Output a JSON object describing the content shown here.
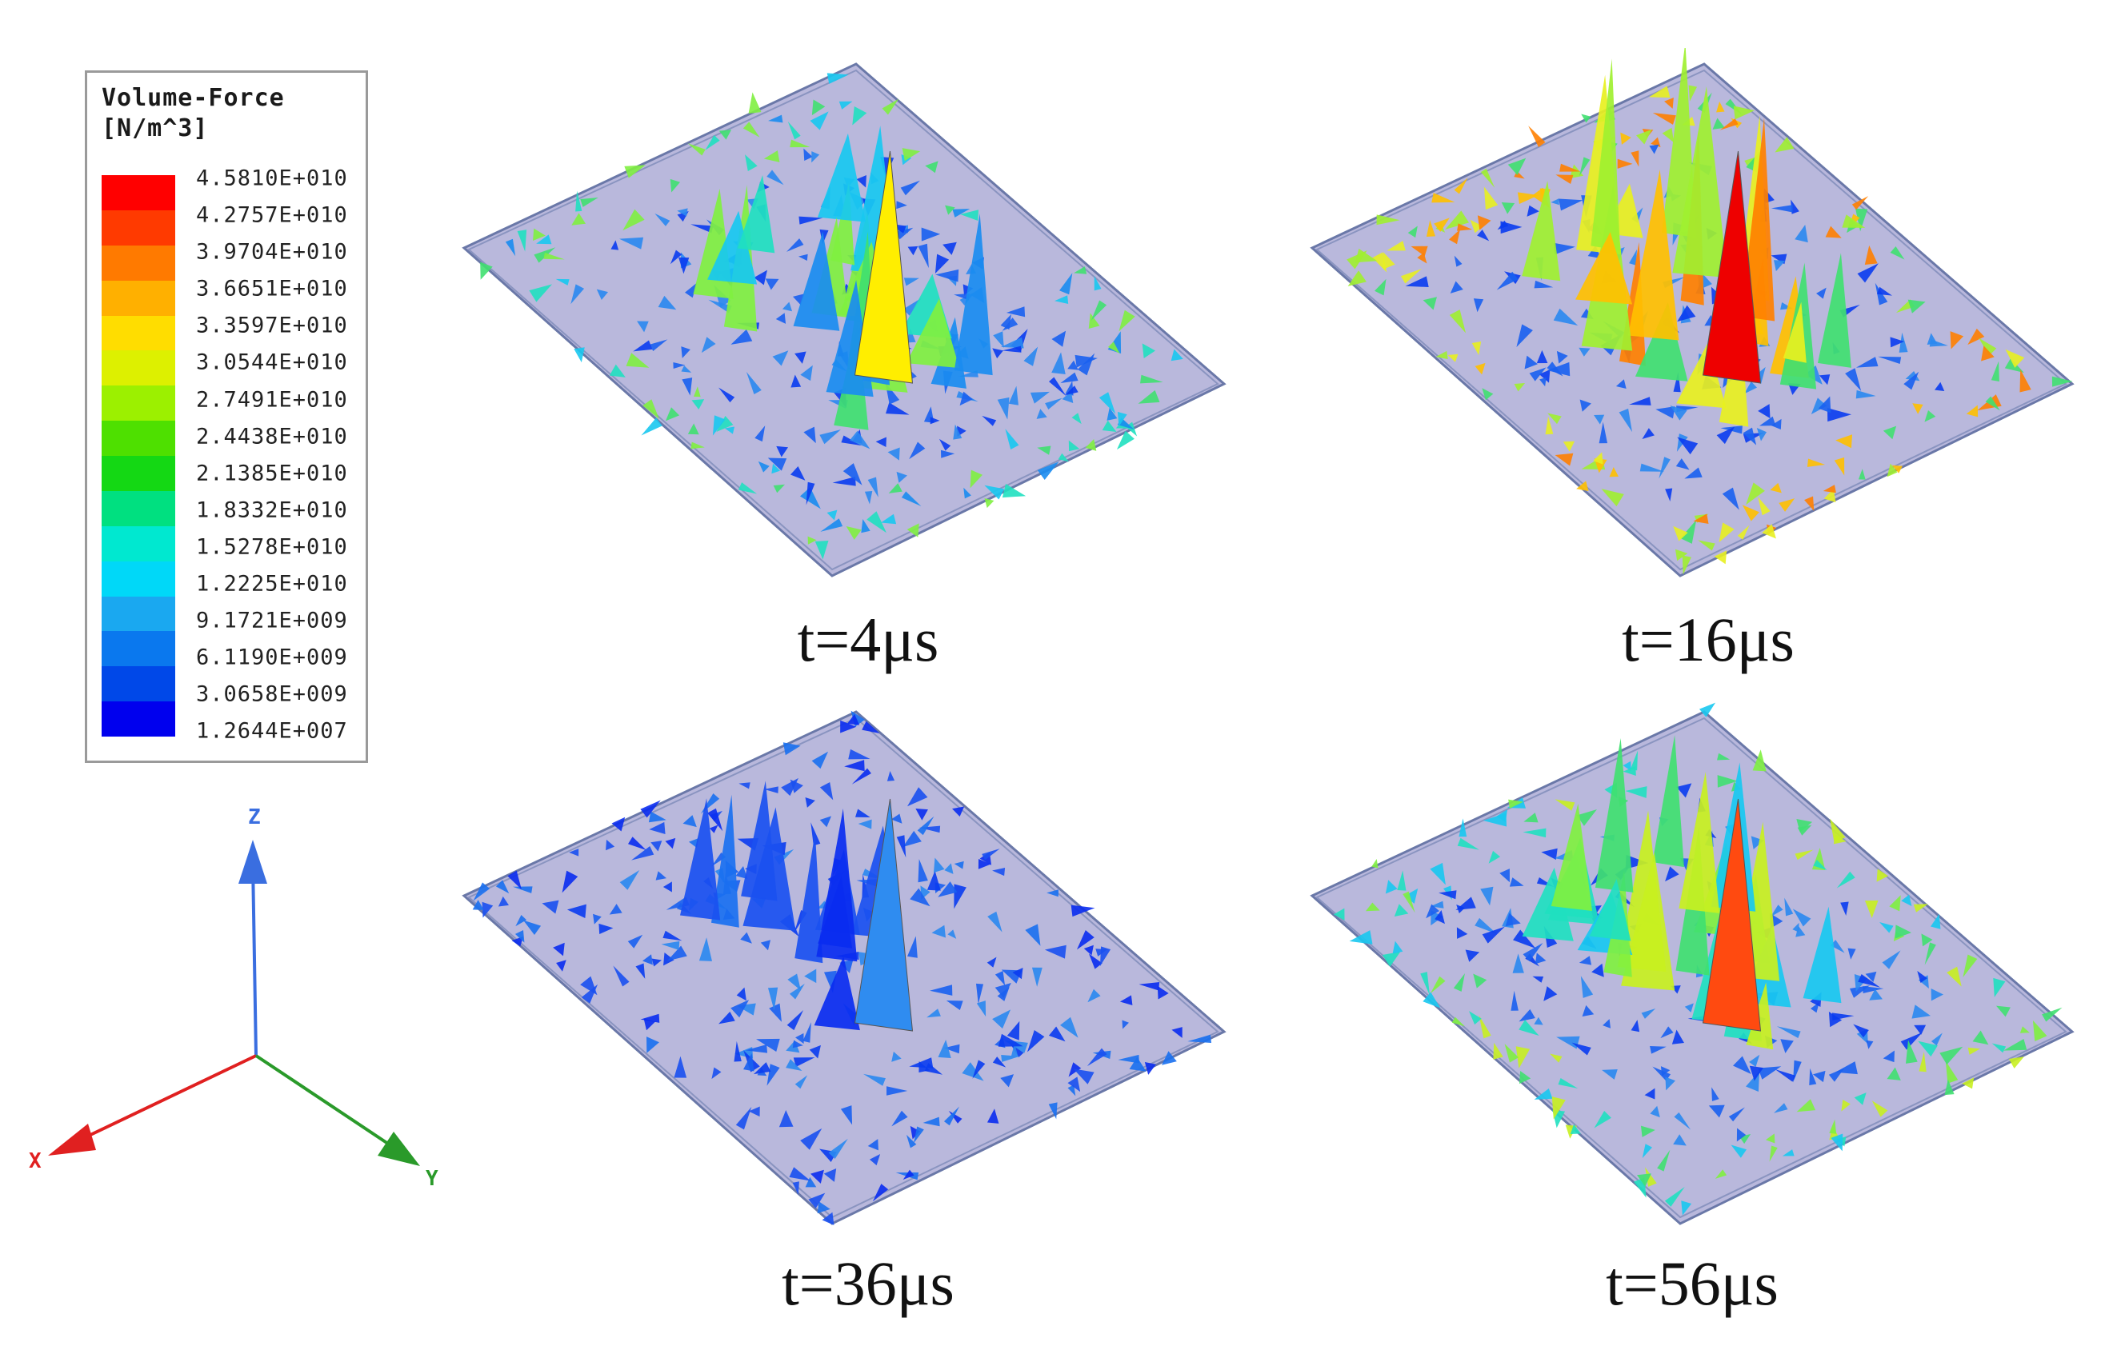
{
  "legend": {
    "title_line1": "Volume-Force",
    "title_line2": "[N/m^3]",
    "ticks": [
      "4.5810E+010",
      "4.2757E+010",
      "3.9704E+010",
      "3.6651E+010",
      "3.3597E+010",
      "3.0544E+010",
      "2.7491E+010",
      "2.4438E+010",
      "2.1385E+010",
      "1.8332E+010",
      "1.5278E+010",
      "1.2225E+010",
      "9.1721E+009",
      "6.1190E+009",
      "3.0658E+009",
      "1.2644E+007"
    ],
    "colors": [
      "#ff0000",
      "#ff3a00",
      "#ff7a00",
      "#ffb000",
      "#ffdd00",
      "#ddf000",
      "#9cf000",
      "#4ee000",
      "#14d814",
      "#00e080",
      "#00e8d0",
      "#00d8f8",
      "#1aa8f0",
      "#0a78ee",
      "#0048e8",
      "#0000ee"
    ]
  },
  "axes": {
    "z_label": "Z",
    "x_label": "X",
    "y_label": "Y"
  },
  "panels": [
    {
      "caption": "t=4μs",
      "intensity": "medium",
      "peak_color": "#ffee00"
    },
    {
      "caption": "t=16μs",
      "intensity": "high",
      "peak_color": "#ee0000"
    },
    {
      "caption": "t=36μs",
      "intensity": "low",
      "peak_color": "#2f8cf0"
    },
    {
      "caption": "t=56μs",
      "intensity": "medium-high",
      "peak_color": "#ff4a10"
    }
  ]
}
